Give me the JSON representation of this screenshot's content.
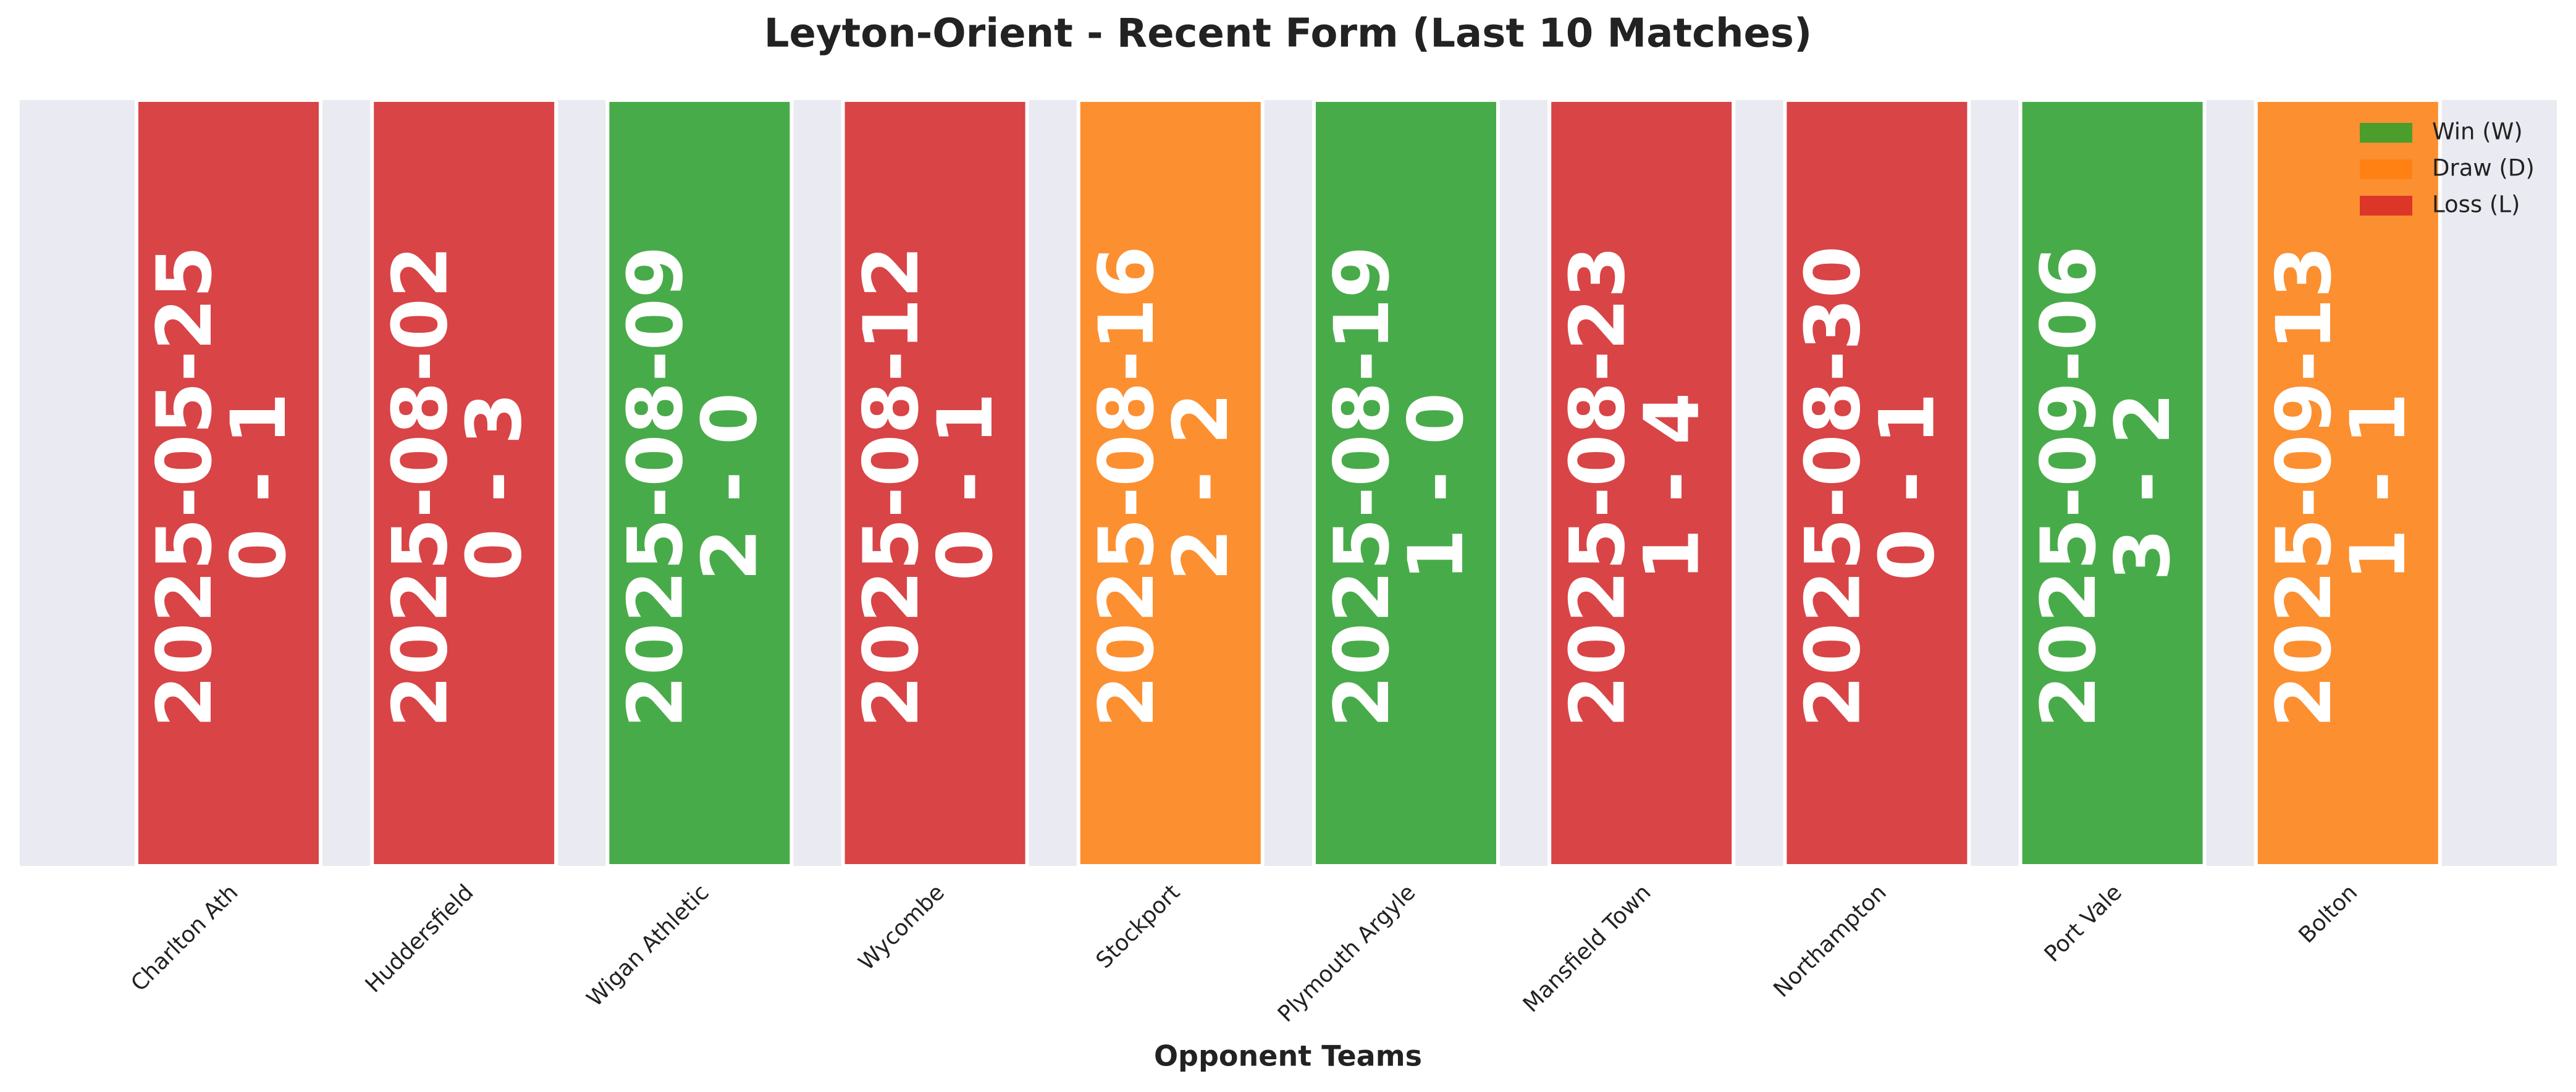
{
  "chart_data": {
    "type": "form-strip",
    "title": "Leyton-Orient - Recent Form (Last 10 Matches)",
    "x_label": "Opponent Teams",
    "categories": [
      "Charlton Ath",
      "Huddersfield",
      "Wigan Athletic",
      "Wycombe",
      "Stockport",
      "Plymouth Argyle",
      "Mansfield Town",
      "Northampton",
      "Port Vale",
      "Bolton"
    ],
    "dates": [
      "2025-05-25",
      "2025-08-02",
      "2025-08-09",
      "2025-08-12",
      "2025-08-16",
      "2025-08-19",
      "2025-08-23",
      "2025-08-30",
      "2025-09-06",
      "2025-09-13"
    ],
    "scores": [
      "0 - 1",
      "0 - 3",
      "2 - 0",
      "0 - 1",
      "2 - 2",
      "1 - 0",
      "1 - 4",
      "0 - 1",
      "3 - 2",
      "1 - 1"
    ],
    "bar_colors": [
      "#d62728",
      "#d62728",
      "#2ca02c",
      "#d62728",
      "#ff7f0e",
      "#2ca02c",
      "#d62728",
      "#d62728",
      "#2ca02c",
      "#ff7f0e"
    ],
    "bar_alpha": 0.85,
    "background": "#eaeaf2",
    "legend_position": "upper right",
    "series": [
      {
        "name": "Win (W)",
        "color": "#2ca02c"
      },
      {
        "name": "Draw (D)",
        "color": "#ff7f0e"
      },
      {
        "name": "Loss (L)",
        "color": "#d62728"
      }
    ]
  }
}
